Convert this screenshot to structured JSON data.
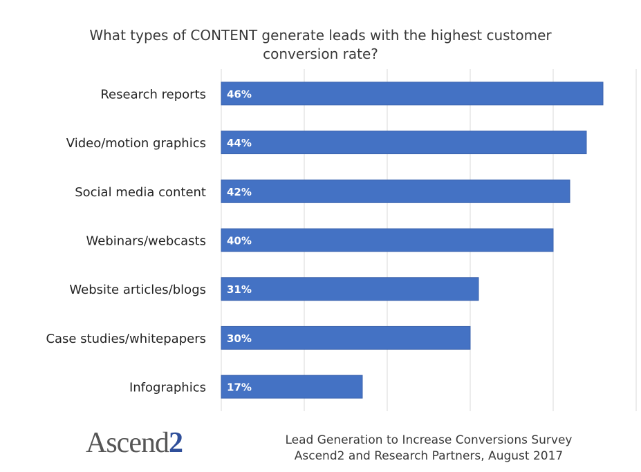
{
  "chart_data": {
    "type": "bar",
    "orientation": "horizontal",
    "title": "What types of CONTENT generate leads with the highest customer conversion rate?",
    "title_lines": [
      "What types of CONTENT generate leads with the highest customer",
      "conversion rate?"
    ],
    "categories": [
      "Research reports",
      "Video/motion graphics",
      "Social media content",
      "Webinars/webcasts",
      "Website articles/blogs",
      "Case studies/whitepapers",
      "Infographics"
    ],
    "values": [
      46,
      44,
      42,
      40,
      31,
      30,
      17
    ],
    "data_labels": [
      "46%",
      "44%",
      "42%",
      "40%",
      "31%",
      "30%",
      "17%"
    ],
    "xlim": [
      0,
      50
    ],
    "gridlines_at": [
      0,
      10,
      20,
      30,
      40,
      50
    ],
    "grid": true,
    "xlabel": "",
    "ylabel": "",
    "bar_color": "#4472c4"
  },
  "footer": {
    "logo_text_main": "Ascend",
    "logo_text_accent": "2",
    "source_lines": [
      "Lead Generation to Increase Conversions Survey",
      "Ascend2 and Research Partners, August 2017"
    ]
  }
}
